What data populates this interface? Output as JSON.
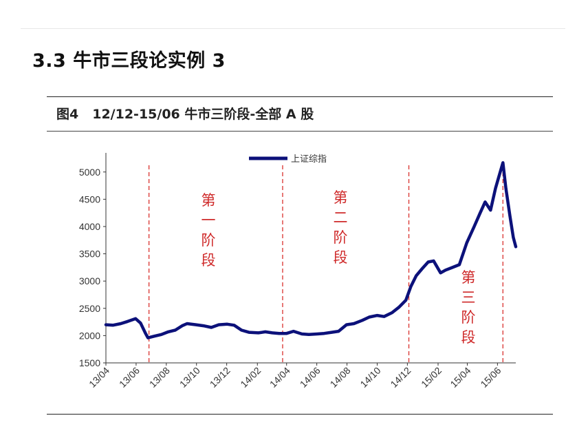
{
  "page": {
    "title": "3.3 牛市三段论实例 3"
  },
  "figure": {
    "number": "图4",
    "caption": "12/12-15/06 牛市三阶段-全部 A 股"
  },
  "chart_data": {
    "type": "line",
    "legend": {
      "label": "上证综指",
      "placement": "top-center"
    },
    "series": [
      {
        "name": "上证综指",
        "color": "#0c117a",
        "x": [
          "2013-04-01",
          "2013-04-15",
          "2013-05-01",
          "2013-05-15",
          "2013-05-31",
          "2013-06-10",
          "2013-06-20",
          "2013-06-25",
          "2013-07-08",
          "2013-07-22",
          "2013-08-05",
          "2013-08-19",
          "2013-09-02",
          "2013-09-12",
          "2013-09-30",
          "2013-10-15",
          "2013-10-31",
          "2013-11-15",
          "2013-12-02",
          "2013-12-16",
          "2013-12-31",
          "2014-01-15",
          "2014-02-03",
          "2014-02-17",
          "2014-03-03",
          "2014-03-17",
          "2014-04-01",
          "2014-04-15",
          "2014-05-02",
          "2014-05-16",
          "2014-06-02",
          "2014-06-16",
          "2014-07-01",
          "2014-07-15",
          "2014-07-31",
          "2014-08-15",
          "2014-09-01",
          "2014-09-15",
          "2014-10-01",
          "2014-10-15",
          "2014-10-31",
          "2014-11-14",
          "2014-11-28",
          "2014-12-08",
          "2014-12-19",
          "2014-12-31",
          "2015-01-12",
          "2015-01-23",
          "2015-02-06",
          "2015-02-16",
          "2015-03-02",
          "2015-03-16",
          "2015-03-31",
          "2015-04-15",
          "2015-04-27",
          "2015-05-07",
          "2015-05-18",
          "2015-05-28",
          "2015-06-05",
          "2015-06-12",
          "2015-06-18",
          "2015-06-26",
          "2015-07-03",
          "2015-07-08"
        ],
        "values": [
          2200,
          2190,
          2220,
          2260,
          2310,
          2230,
          2040,
          1960,
          1990,
          2020,
          2070,
          2100,
          2180,
          2220,
          2200,
          2180,
          2150,
          2200,
          2210,
          2190,
          2100,
          2060,
          2050,
          2070,
          2050,
          2040,
          2040,
          2080,
          2030,
          2020,
          2030,
          2040,
          2060,
          2080,
          2200,
          2220,
          2280,
          2340,
          2370,
          2350,
          2420,
          2520,
          2650,
          2900,
          3100,
          3230,
          3350,
          3370,
          3150,
          3200,
          3250,
          3300,
          3700,
          4000,
          4250,
          4450,
          4300,
          4700,
          4950,
          5170,
          4700,
          4200,
          3800,
          3630
        ]
      }
    ],
    "x_ticks": [
      "13/04",
      "13/06",
      "13/08",
      "13/10",
      "13/12",
      "14/02",
      "14/04",
      "14/06",
      "14/08",
      "14/10",
      "14/12",
      "15/02",
      "15/04",
      "15/06"
    ],
    "x_tick_dates": [
      "2013-04-01",
      "2013-06-01",
      "2013-08-01",
      "2013-10-01",
      "2013-12-01",
      "2014-02-01",
      "2014-04-01",
      "2014-06-01",
      "2014-08-01",
      "2014-10-01",
      "2014-12-01",
      "2015-02-01",
      "2015-04-01",
      "2015-06-01"
    ],
    "x_range": [
      "2013-04-01",
      "2015-07-08"
    ],
    "y_ticks": [
      1500,
      2000,
      2500,
      3000,
      3500,
      4000,
      4500,
      5000
    ],
    "ylim": [
      1500,
      5300
    ],
    "grid": false,
    "dividers": [
      {
        "date": "2013-06-27",
        "color": "#d9302c"
      },
      {
        "date": "2014-03-24",
        "color": "#d9302c"
      },
      {
        "date": "2014-12-04",
        "color": "#d9302c"
      },
      {
        "date": "2015-06-12",
        "color": "#d9302c"
      }
    ],
    "annotations": [
      {
        "text": "第一阶段",
        "chars": [
          "第",
          "一",
          "阶",
          "段"
        ],
        "color": "#cf2a2a"
      },
      {
        "text": "第二阶段",
        "chars": [
          "第",
          "二",
          "阶",
          "段"
        ],
        "color": "#cf2a2a"
      },
      {
        "text": "第三阶段",
        "chars": [
          "第",
          "三",
          "阶",
          "段"
        ],
        "color": "#cf2a2a"
      }
    ]
  }
}
